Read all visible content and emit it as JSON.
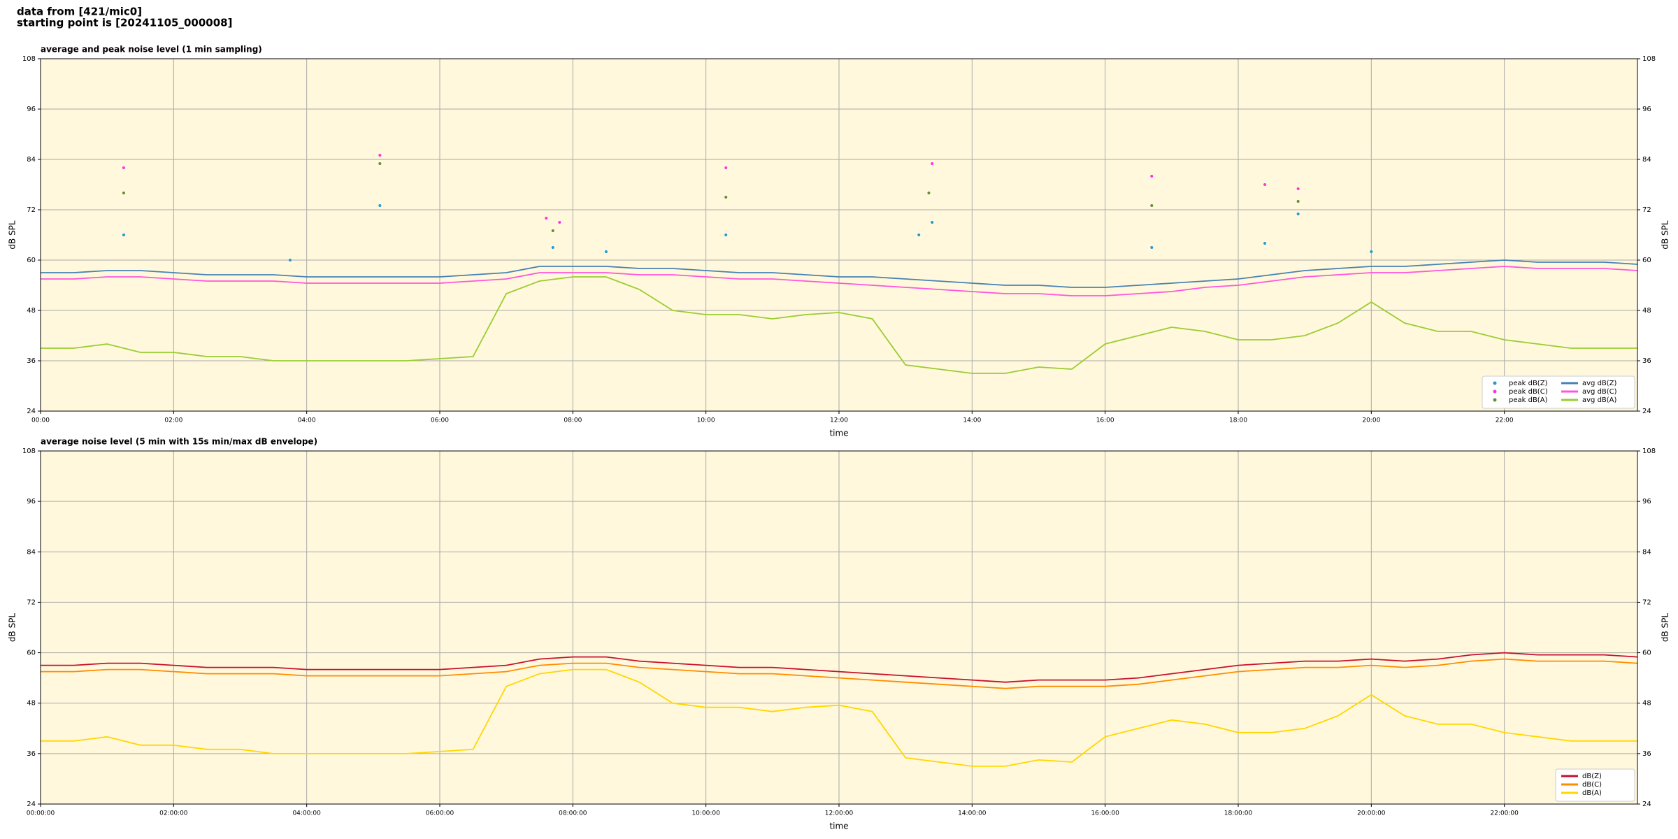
{
  "header": {
    "lines": [
      "data from [421/mic0]",
      "starting point is [20241105_000008]"
    ]
  },
  "chart_data": [
    {
      "type": "line",
      "title": "average and peak noise level (1 min sampling)",
      "x_label": "time",
      "y_label": "dB SPL",
      "xlim": [
        0,
        24
      ],
      "ylim": [
        24,
        108
      ],
      "yticks": [
        24,
        36,
        48,
        60,
        72,
        84,
        96,
        108
      ],
      "xticks": [
        {
          "value": 0,
          "label": "00:00"
        },
        {
          "value": 2,
          "label": "02:00"
        },
        {
          "value": 4,
          "label": "04:00"
        },
        {
          "value": 6,
          "label": "06:00"
        },
        {
          "value": 8,
          "label": "08:00"
        },
        {
          "value": 10,
          "label": "10:00"
        },
        {
          "value": 12,
          "label": "12:00"
        },
        {
          "value": 14,
          "label": "14:00"
        },
        {
          "value": 16,
          "label": "16:00"
        },
        {
          "value": 18,
          "label": "18:00"
        },
        {
          "value": 20,
          "label": "20:00"
        },
        {
          "value": 22,
          "label": "22:00"
        }
      ],
      "grid": true,
      "legend": "lower right",
      "legend_columns": 2,
      "background": "#fff8dc",
      "right_axis": true,
      "x": [
        0,
        0.5,
        1,
        1.5,
        2,
        2.5,
        3,
        3.5,
        4,
        4.5,
        5,
        5.5,
        6,
        6.5,
        7,
        7.5,
        8,
        8.5,
        9,
        9.5,
        10,
        10.5,
        11,
        11.5,
        12,
        12.5,
        13,
        13.5,
        14,
        14.5,
        15,
        15.5,
        16,
        16.5,
        17,
        17.5,
        18,
        18.5,
        19,
        19.5,
        20,
        20.5,
        21,
        21.5,
        22,
        22.5,
        23,
        23.5,
        24
      ],
      "series": [
        {
          "name": "peak dB(Z)",
          "color": "#1f9bd6",
          "mark": "scatter",
          "x": [
            1.25,
            3.75,
            5.1,
            7.7,
            8.5,
            10.3,
            13.2,
            13.4,
            16.7,
            18.4,
            18.9,
            20
          ],
          "values": [
            66,
            60,
            73,
            63,
            62,
            66,
            66,
            69,
            63,
            64,
            71,
            62
          ]
        },
        {
          "name": "peak dB(C)",
          "color": "#ff33dd",
          "mark": "scatter",
          "x": [
            1.25,
            5.1,
            7.6,
            7.8,
            10.3,
            13.4,
            16.7,
            18.4,
            18.9
          ],
          "values": [
            82,
            85,
            70,
            69,
            82,
            83,
            80,
            78,
            77
          ]
        },
        {
          "name": "peak dB(A)",
          "color": "#5f8f2f",
          "mark": "scatter",
          "x": [
            1.25,
            5.1,
            7.7,
            10.3,
            13.35,
            16.7,
            18.9
          ],
          "values": [
            76,
            83,
            67,
            75,
            76,
            73,
            74
          ]
        },
        {
          "name": "avg dB(Z)",
          "color": "#4682b4",
          "mark": "line",
          "values": [
            57,
            57,
            57.5,
            57.5,
            57,
            56.5,
            56.5,
            56.5,
            56,
            56,
            56,
            56,
            56,
            56.5,
            57,
            58.5,
            58.5,
            58.5,
            58,
            58,
            57.5,
            57,
            57,
            56.5,
            56,
            56,
            55.5,
            55,
            54.5,
            54,
            54,
            53.5,
            53.5,
            54,
            54.5,
            55,
            55.5,
            56.5,
            57.5,
            58,
            58.5,
            58.5,
            59,
            59.5,
            60,
            59.5,
            59.5,
            59.5,
            59
          ]
        },
        {
          "name": "avg dB(C)",
          "color": "#ff55dd",
          "mark": "line",
          "values": [
            55.5,
            55.5,
            56,
            56,
            55.5,
            55,
            55,
            55,
            54.5,
            54.5,
            54.5,
            54.5,
            54.5,
            55,
            55.5,
            57,
            57,
            57,
            56.5,
            56.5,
            56,
            55.5,
            55.5,
            55,
            54.5,
            54,
            53.5,
            53,
            52.5,
            52,
            52,
            51.5,
            51.5,
            52,
            52.5,
            53.5,
            54,
            55,
            56,
            56.5,
            57,
            57,
            57.5,
            58,
            58.5,
            58,
            58,
            58,
            57.5
          ]
        },
        {
          "name": "avg dB(A)",
          "color": "#9acd32",
          "mark": "line",
          "values": [
            39,
            39,
            40,
            38,
            38,
            37,
            37,
            36,
            36,
            36,
            36,
            36,
            36.5,
            37,
            52,
            55,
            56,
            56,
            53,
            48,
            47,
            47,
            46,
            47,
            47.5,
            46,
            35,
            34,
            33,
            33,
            34.5,
            34,
            40,
            42,
            44,
            43,
            41,
            41,
            42,
            45,
            50,
            45,
            43,
            43,
            41,
            40,
            39,
            39,
            39
          ]
        }
      ]
    },
    {
      "type": "line",
      "title": "average noise level (5 min with 15s min/max dB envelope)",
      "x_label": "time",
      "y_label": "dB SPL",
      "xlim": [
        0,
        24
      ],
      "ylim": [
        24,
        108
      ],
      "yticks": [
        24,
        36,
        48,
        60,
        72,
        84,
        96,
        108
      ],
      "xticks": [
        {
          "value": 0,
          "label": "00:00:00"
        },
        {
          "value": 2,
          "label": "02:00:00"
        },
        {
          "value": 4,
          "label": "04:00:00"
        },
        {
          "value": 6,
          "label": "06:00:00"
        },
        {
          "value": 8,
          "label": "08:00:00"
        },
        {
          "value": 10,
          "label": "10:00:00"
        },
        {
          "value": 12,
          "label": "12:00:00"
        },
        {
          "value": 14,
          "label": "14:00:00"
        },
        {
          "value": 16,
          "label": "16:00:00"
        },
        {
          "value": 18,
          "label": "18:00:00"
        },
        {
          "value": 20,
          "label": "20:00:00"
        },
        {
          "value": 22,
          "label": "22:00:00"
        }
      ],
      "grid": true,
      "legend": "lower right",
      "legend_columns": 1,
      "background": "#fff8dc",
      "right_axis": true,
      "x": [
        0,
        0.5,
        1,
        1.5,
        2,
        2.5,
        3,
        3.5,
        4,
        4.5,
        5,
        5.5,
        6,
        6.5,
        7,
        7.5,
        8,
        8.5,
        9,
        9.5,
        10,
        10.5,
        11,
        11.5,
        12,
        12.5,
        13,
        13.5,
        14,
        14.5,
        15,
        15.5,
        16,
        16.5,
        17,
        17.5,
        18,
        18.5,
        19,
        19.5,
        20,
        20.5,
        21,
        21.5,
        22,
        22.5,
        23,
        23.5,
        24
      ],
      "series": [
        {
          "name": "dB(Z)",
          "color": "#c8102e",
          "mark": "line",
          "values": [
            57,
            57,
            57.5,
            57.5,
            57,
            56.5,
            56.5,
            56.5,
            56,
            56,
            56,
            56,
            56,
            56.5,
            57,
            58.5,
            59,
            59,
            58,
            57.5,
            57,
            56.5,
            56.5,
            56,
            55.5,
            55,
            54.5,
            54,
            53.5,
            53,
            53.5,
            53.5,
            53.5,
            54,
            55,
            56,
            57,
            57.5,
            58,
            58,
            58.5,
            58,
            58.5,
            59.5,
            60,
            59.5,
            59.5,
            59.5,
            59
          ]
        },
        {
          "name": "dB(C)",
          "color": "#ff8c00",
          "mark": "line",
          "values": [
            55.5,
            55.5,
            56,
            56,
            55.5,
            55,
            55,
            55,
            54.5,
            54.5,
            54.5,
            54.5,
            54.5,
            55,
            55.5,
            57,
            57.5,
            57.5,
            56.5,
            56,
            55.5,
            55,
            55,
            54.5,
            54,
            53.5,
            53,
            52.5,
            52,
            51.5,
            52,
            52,
            52,
            52.5,
            53.5,
            54.5,
            55.5,
            56,
            56.5,
            56.5,
            57,
            56.5,
            57,
            58,
            58.5,
            58,
            58,
            58,
            57.5
          ]
        },
        {
          "name": "dB(A)",
          "color": "#ffd700",
          "mark": "line",
          "values": [
            39,
            39,
            40,
            38,
            38,
            37,
            37,
            36,
            36,
            36,
            36,
            36,
            36.5,
            37,
            52,
            55,
            56,
            56,
            53,
            48,
            47,
            47,
            46,
            47,
            47.5,
            46,
            35,
            34,
            33,
            33,
            34.5,
            34,
            40,
            42,
            44,
            43,
            41,
            41,
            42,
            45,
            50,
            45,
            43,
            43,
            41,
            40,
            39,
            39,
            39
          ]
        }
      ]
    }
  ]
}
